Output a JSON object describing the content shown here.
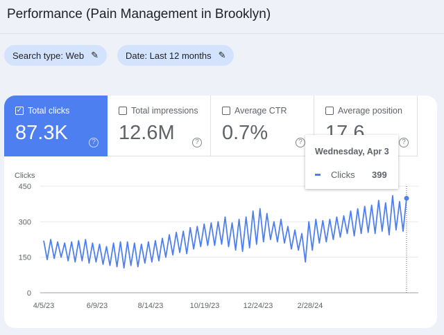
{
  "title": "Performance (Pain Management in Brooklyn)",
  "filters": [
    {
      "label": "Search type: Web",
      "icon": "pencil-icon"
    },
    {
      "label": "Date: Last 12 months",
      "icon": "pencil-icon"
    }
  ],
  "metrics": [
    {
      "label": "Total clicks",
      "value": "87.3K",
      "checked": true
    },
    {
      "label": "Total impressions",
      "value": "12.6M",
      "checked": false
    },
    {
      "label": "Average CTR",
      "value": "0.7%",
      "checked": false
    },
    {
      "label": "Average position",
      "value": "17.6",
      "checked": false
    }
  ],
  "tooltip": {
    "date": "Wednesday, Apr 3",
    "series": "Clicks",
    "value": "399"
  },
  "colors": {
    "accent": "#4e7ff0"
  },
  "chart_data": {
    "type": "line",
    "ylabel": "Clicks",
    "ylim": [
      0,
      450
    ],
    "yticks": [
      "0",
      "150",
      "300",
      "450"
    ],
    "xticks": [
      "4/5/23",
      "6/9/23",
      "8/14/23",
      "10/19/23",
      "12/24/23",
      "2/28/24"
    ],
    "x_range_days": 364,
    "series": [
      {
        "name": "Clicks",
        "note": "alternating weekly peak/trough approximations",
        "values": [
          220,
          140,
          225,
          145,
          215,
          150,
          210,
          135,
          215,
          130,
          220,
          135,
          225,
          125,
          210,
          130,
          205,
          120,
          195,
          115,
          210,
          110,
          215,
          105,
          215,
          115,
          210,
          110,
          205,
          125,
          215,
          130,
          220,
          135,
          230,
          150,
          245,
          160,
          255,
          170,
          260,
          165,
          275,
          185,
          280,
          195,
          290,
          200,
          295,
          200,
          300,
          205,
          320,
          195,
          295,
          180,
          310,
          175,
          320,
          190,
          345,
          205,
          355,
          215,
          335,
          225,
          300,
          215,
          310,
          210,
          280,
          185,
          265,
          180,
          250,
          130,
          300,
          180,
          310,
          210,
          305,
          215,
          310,
          225,
          320,
          235,
          325,
          250,
          345,
          240,
          355,
          250,
          365,
          255,
          370,
          250,
          390,
          260,
          380,
          245,
          410,
          265,
          385,
          260,
          399
        ]
      }
    ]
  }
}
